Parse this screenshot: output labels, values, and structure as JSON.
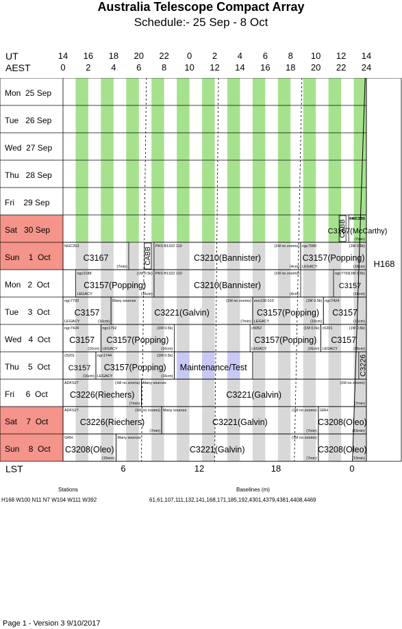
{
  "title": "Australia Telescope Compact Array",
  "subtitle": "Schedule:- 25 Sep - 8  Oct",
  "axis": {
    "ut_label": "UT",
    "aest_label": "AEST",
    "lst_label": "LST",
    "ut_ticks": [
      "14",
      "16",
      "18",
      "20",
      "22",
      "0",
      "2",
      "4",
      "6",
      "8",
      "10",
      "12",
      "14"
    ],
    "aest_ticks": [
      "0",
      "2",
      "4",
      "6",
      "8",
      "10",
      "12",
      "14",
      "16",
      "18",
      "20",
      "22",
      "24"
    ],
    "lst_ticks": [
      "6",
      "12",
      "18",
      "0"
    ]
  },
  "colors": {
    "weekend": "#f4948a",
    "green": "#a6e28e",
    "grey": "#d8d8d8",
    "maintenance": "#c8c8f4"
  },
  "days": [
    {
      "label": "Mon  25 Sep",
      "weekend": false
    },
    {
      "label": "Tue   26 Sep",
      "weekend": false
    },
    {
      "label": "Wed  27 Sep",
      "weekend": false
    },
    {
      "label": "Thu   28 Sep",
      "weekend": false
    },
    {
      "label": "Fri    29 Sep",
      "weekend": false
    },
    {
      "label": "Sat   30 Sep",
      "weekend": true
    },
    {
      "label": "Sun    1  Oct",
      "weekend": true
    },
    {
      "label": "Mon   2  Oct",
      "weekend": false
    },
    {
      "label": "Tue    3  Oct",
      "weekend": false
    },
    {
      "label": "Wed   4  Oct",
      "weekend": false
    },
    {
      "label": "Thu    5  Oct",
      "weekend": false
    },
    {
      "label": "Fri     6  Oct",
      "weekend": false
    },
    {
      "label": "Sat    7  Oct",
      "weekend": true
    },
    {
      "label": "Sun    8  Oct",
      "weekend": true
    }
  ],
  "config_label": "H168",
  "blocks": [
    {
      "row": 5,
      "start": 22.6,
      "end": 24,
      "main": "C3167(McCarthy)",
      "top_left": "NGC253",
      "top_right": "(64M 32k)",
      "bottom_right": "(7min)",
      "cabb": true
    },
    {
      "row": 6,
      "start": 0,
      "end": 5.2,
      "main": "C3167",
      "top_left": "NGC253",
      "bottom_right": "(7min)"
    },
    {
      "row": 6,
      "start": 7.2,
      "end": 18.8,
      "main": "C3210(Bannister)",
      "top_left": "PKS B1322 110",
      "top_right": "(1M no zooms)",
      "bottom_right": "(4cm)",
      "cabb": true
    },
    {
      "row": 6,
      "start": 18.8,
      "end": 24,
      "main": "C3157(Popping)",
      "top_left": "ngc7090",
      "top_right": "(1M 0.5k)",
      "bottom_left": "LEGACY",
      "bottom_right": "(16cm)"
    },
    {
      "row": 7,
      "start": 1,
      "end": 7.2,
      "main": "C3157(Popping)",
      "top_left": "ngc2188",
      "top_right": "(1M 0.5k)",
      "bottom_left": "LEGACY",
      "bottom_right": "(16cm)"
    },
    {
      "row": 7,
      "start": 7.2,
      "end": 18.8,
      "main": "C3210(Bannister)",
      "top_left": "PKS B1322 110",
      "top_right": "(1M no zooms)",
      "bottom_right": "(4cm)"
    },
    {
      "row": 7,
      "start": 21.4,
      "end": 24,
      "main": "C3157",
      "top_left": "ngc7793",
      "top_right": "(1M 0.5k)",
      "bottom_right": "(16cm)"
    },
    {
      "row": 8,
      "start": 0,
      "end": 3.8,
      "main": "C3157",
      "top_left": "ngc7793",
      "bottom_left": "LEGACY",
      "bottom_right": "(16cm)"
    },
    {
      "row": 8,
      "start": 3.8,
      "end": 15,
      "main": "C3221(Galvin)",
      "top_left": "Many sources",
      "top_right": "(1M no zooms)",
      "bottom_right": "(7min)"
    },
    {
      "row": 8,
      "start": 15,
      "end": 20.6,
      "main": "C3157(Popping)",
      "top_left": "eso138 010",
      "top_right": "(1M 0.5k)",
      "bottom_left": "LEGACY",
      "bottom_right": "(16cm)"
    },
    {
      "row": 8,
      "start": 20.6,
      "end": 24,
      "main": "C3157",
      "top_left": "ngc7424",
      "bottom_right": "(16cm)"
    },
    {
      "row": 9,
      "start": 0,
      "end": 3,
      "main": "C3157",
      "top_left": "ngc7424",
      "bottom_right": "(16cm)"
    },
    {
      "row": 9,
      "start": 3,
      "end": 8.8,
      "main": "C3157(Popping)",
      "top_left": "ngc1792",
      "top_right": "(1M 0.5k)",
      "bottom_left": "LEGACY",
      "bottom_right": "(16cm)"
    },
    {
      "row": 9,
      "start": 14.8,
      "end": 20.4,
      "main": "C3157(Popping)",
      "top_left": "c5052",
      "top_right": "(1M 0.5k)",
      "bottom_left": "LEGACY",
      "bottom_right": "(16cm)"
    },
    {
      "row": 9,
      "start": 20.4,
      "end": 24,
      "main": "C3157",
      "top_left": "c5201",
      "top_right": "(1M 0.5k)",
      "bottom_left": "LEGACY",
      "bottom_right": "(16cm)"
    },
    {
      "row": 10,
      "start": 0,
      "end": 2.6,
      "main": "C3157",
      "top_left": "c5201",
      "bottom_right": "(16cm)"
    },
    {
      "row": 10,
      "start": 2.6,
      "end": 8.8,
      "main": "C3157(Popping)",
      "top_left": "ngc1744",
      "top_right": "(1M 0.5k)",
      "bottom_left": "LEGACY",
      "bottom_right": "(16cm)"
    },
    {
      "row": 10,
      "start": 8.8,
      "end": 15,
      "main": "Maintenance/Test",
      "maint": true
    },
    {
      "row": 10,
      "start": 23.4,
      "end": 24,
      "main": "C3226",
      "vertical": true
    },
    {
      "row": 11,
      "start": 0,
      "end": 6.2,
      "main": "C3226(Riechers)",
      "top_left": "ADFS27",
      "top_right": "(1M no zooms)",
      "bottom_right": "(7min)"
    },
    {
      "row": 11,
      "start": 6.2,
      "end": 24,
      "main": "C3221(Galvin)",
      "top_left": "Many sources",
      "top_right": "(1M no zooms)",
      "bottom_right": "(7min)"
    },
    {
      "row": 12,
      "start": 0,
      "end": 7.8,
      "main": "C3226(Riechers)",
      "top_left": "ADFS27",
      "top_right": "(1M no zooms)",
      "bottom_right": "(7min)"
    },
    {
      "row": 12,
      "start": 7.8,
      "end": 20.2,
      "main": "C3221(Galvin)",
      "top_left": "Many sources",
      "top_right": "(1M no zooms)",
      "bottom_right": "(7min)"
    },
    {
      "row": 12,
      "start": 20.2,
      "end": 24,
      "main": "C3208(Oleo)",
      "top_left": "GRH",
      "bottom_right": "(15min)"
    },
    {
      "row": 13,
      "start": 0,
      "end": 4.2,
      "main": "C3208(Oleo)",
      "top_left": "GRH",
      "bottom_right": "(15min)"
    },
    {
      "row": 13,
      "start": 4.2,
      "end": 20.2,
      "main": "C3221(Galvin)",
      "top_left": "Many sources",
      "top_right": "(1M no zooms)",
      "bottom_right": "(7min)"
    },
    {
      "row": 13,
      "start": 20.2,
      "end": 24,
      "main": "C3208(Oleo)",
      "bottom_right": "(15min)"
    }
  ],
  "stations_title": "Stations",
  "stations": "H168   W100  N11  N7  W104  W111  W392",
  "baselines_title": "Baselines (m)",
  "baselines": "61,61,107,111,132,141,168,171,185,192,4301,4379,4381,4408,4469",
  "footer": "Page 1 - Version 3  9/10/2017"
}
